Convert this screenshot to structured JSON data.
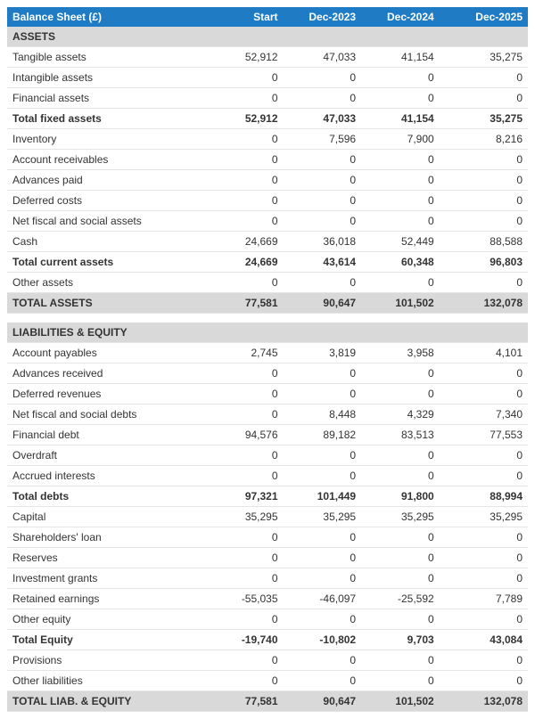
{
  "colors": {
    "header_bg": "#1e7bc4",
    "header_fg": "#ffffff",
    "section_bg": "#d9d9d9",
    "row_border": "#e5e5e5",
    "text": "#333333"
  },
  "typography": {
    "font_family": "Arial",
    "font_size_pt": 9
  },
  "header": {
    "title": "Balance Sheet (£)",
    "cols": [
      "Start",
      "Dec-2023",
      "Dec-2024",
      "Dec-2025"
    ]
  },
  "sections": {
    "assets": "ASSETS",
    "liab": "LIABILITIES & EQUITY"
  },
  "rows": {
    "tangible": {
      "label": "Tangible assets",
      "v": [
        "52,912",
        "47,033",
        "41,154",
        "35,275"
      ]
    },
    "intangible": {
      "label": "Intangible assets",
      "v": [
        "0",
        "0",
        "0",
        "0"
      ]
    },
    "finassets": {
      "label": "Financial assets",
      "v": [
        "0",
        "0",
        "0",
        "0"
      ]
    },
    "tfa": {
      "label": "Total fixed assets",
      "v": [
        "52,912",
        "47,033",
        "41,154",
        "35,275"
      ]
    },
    "inventory": {
      "label": "Inventory",
      "v": [
        "0",
        "7,596",
        "7,900",
        "8,216"
      ]
    },
    "ar": {
      "label": "Account receivables",
      "v": [
        "0",
        "0",
        "0",
        "0"
      ]
    },
    "advpaid": {
      "label": "Advances paid",
      "v": [
        "0",
        "0",
        "0",
        "0"
      ]
    },
    "defcosts": {
      "label": "Deferred costs",
      "v": [
        "0",
        "0",
        "0",
        "0"
      ]
    },
    "nfsa": {
      "label": "Net fiscal and social assets",
      "v": [
        "0",
        "0",
        "0",
        "0"
      ]
    },
    "cash": {
      "label": "Cash",
      "v": [
        "24,669",
        "36,018",
        "52,449",
        "88,588"
      ]
    },
    "tca": {
      "label": "Total current assets",
      "v": [
        "24,669",
        "43,614",
        "60,348",
        "96,803"
      ]
    },
    "oa": {
      "label": "Other assets",
      "v": [
        "0",
        "0",
        "0",
        "0"
      ]
    },
    "ta": {
      "label": "TOTAL ASSETS",
      "v": [
        "77,581",
        "90,647",
        "101,502",
        "132,078"
      ]
    },
    "ap": {
      "label": "Account payables",
      "v": [
        "2,745",
        "3,819",
        "3,958",
        "4,101"
      ]
    },
    "advrec": {
      "label": "Advances received",
      "v": [
        "0",
        "0",
        "0",
        "0"
      ]
    },
    "defrev": {
      "label": "Deferred revenues",
      "v": [
        "0",
        "0",
        "0",
        "0"
      ]
    },
    "nfsd": {
      "label": "Net fiscal and social debts",
      "v": [
        "0",
        "8,448",
        "4,329",
        "7,340"
      ]
    },
    "findebt": {
      "label": "Financial debt",
      "v": [
        "94,576",
        "89,182",
        "83,513",
        "77,553"
      ]
    },
    "overdraft": {
      "label": "Overdraft",
      "v": [
        "0",
        "0",
        "0",
        "0"
      ]
    },
    "accint": {
      "label": "Accrued interests",
      "v": [
        "0",
        "0",
        "0",
        "0"
      ]
    },
    "tdebts": {
      "label": "Total debts",
      "v": [
        "97,321",
        "101,449",
        "91,800",
        "88,994"
      ]
    },
    "capital": {
      "label": "Capital",
      "v": [
        "35,295",
        "35,295",
        "35,295",
        "35,295"
      ]
    },
    "shloan": {
      "label": "Shareholders' loan",
      "v": [
        "0",
        "0",
        "0",
        "0"
      ]
    },
    "reserves": {
      "label": "Reserves",
      "v": [
        "0",
        "0",
        "0",
        "0"
      ]
    },
    "invgrants": {
      "label": "Investment grants",
      "v": [
        "0",
        "0",
        "0",
        "0"
      ]
    },
    "retearn": {
      "label": "Retained earnings",
      "v": [
        "-55,035",
        "-46,097",
        "-25,592",
        "7,789"
      ]
    },
    "otheq": {
      "label": "Other equity",
      "v": [
        "0",
        "0",
        "0",
        "0"
      ]
    },
    "teq": {
      "label": "Total Equity",
      "v": [
        "-19,740",
        "-10,802",
        "9,703",
        "43,084"
      ]
    },
    "prov": {
      "label": "Provisions",
      "v": [
        "0",
        "0",
        "0",
        "0"
      ]
    },
    "othliab": {
      "label": "Other liabilities",
      "v": [
        "0",
        "0",
        "0",
        "0"
      ]
    },
    "tle": {
      "label": "TOTAL LIAB. & EQUITY",
      "v": [
        "77,581",
        "90,647",
        "101,502",
        "132,078"
      ]
    }
  }
}
